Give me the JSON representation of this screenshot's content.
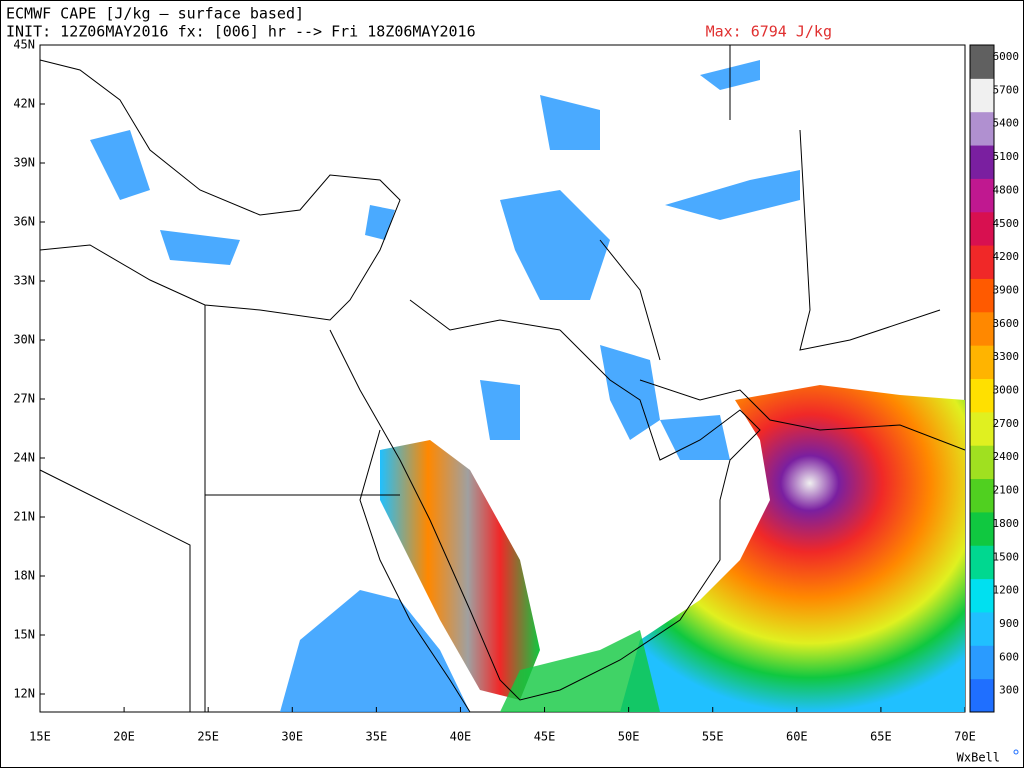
{
  "header": {
    "title": "ECMWF CAPE [J/kg – surface based]",
    "init": "INIT: 12Z06MAY2016 fx: [006] hr --> Fri 18Z06MAY2016",
    "max": "Max: 6794 J/kg"
  },
  "map": {
    "lat_labels": [
      "45N",
      "42N",
      "39N",
      "36N",
      "33N",
      "30N",
      "27N",
      "24N",
      "21N",
      "18N",
      "15N",
      "12N"
    ],
    "lon_labels": [
      "15E",
      "20E",
      "25E",
      "30E",
      "35E",
      "40E",
      "45E",
      "50E",
      "55E",
      "60E",
      "65E",
      "70E"
    ]
  },
  "colorbar": {
    "ticks": [
      300,
      600,
      900,
      1200,
      1500,
      1800,
      2100,
      2400,
      2700,
      3000,
      3300,
      3600,
      3900,
      4200,
      4500,
      4800,
      5100,
      5400,
      5700,
      6000
    ],
    "colors": [
      "#1f6fff",
      "#2a9bff",
      "#20c0ff",
      "#00e0f0",
      "#00d890",
      "#10c840",
      "#50d020",
      "#a0e020",
      "#e0f020",
      "#ffe000",
      "#ffb400",
      "#ff8800",
      "#ff5a00",
      "#f02828",
      "#d81050",
      "#c01890",
      "#7a1fa0",
      "#b090d0",
      "#f0f0f0",
      "#606060"
    ]
  },
  "credit": "WxBell"
}
